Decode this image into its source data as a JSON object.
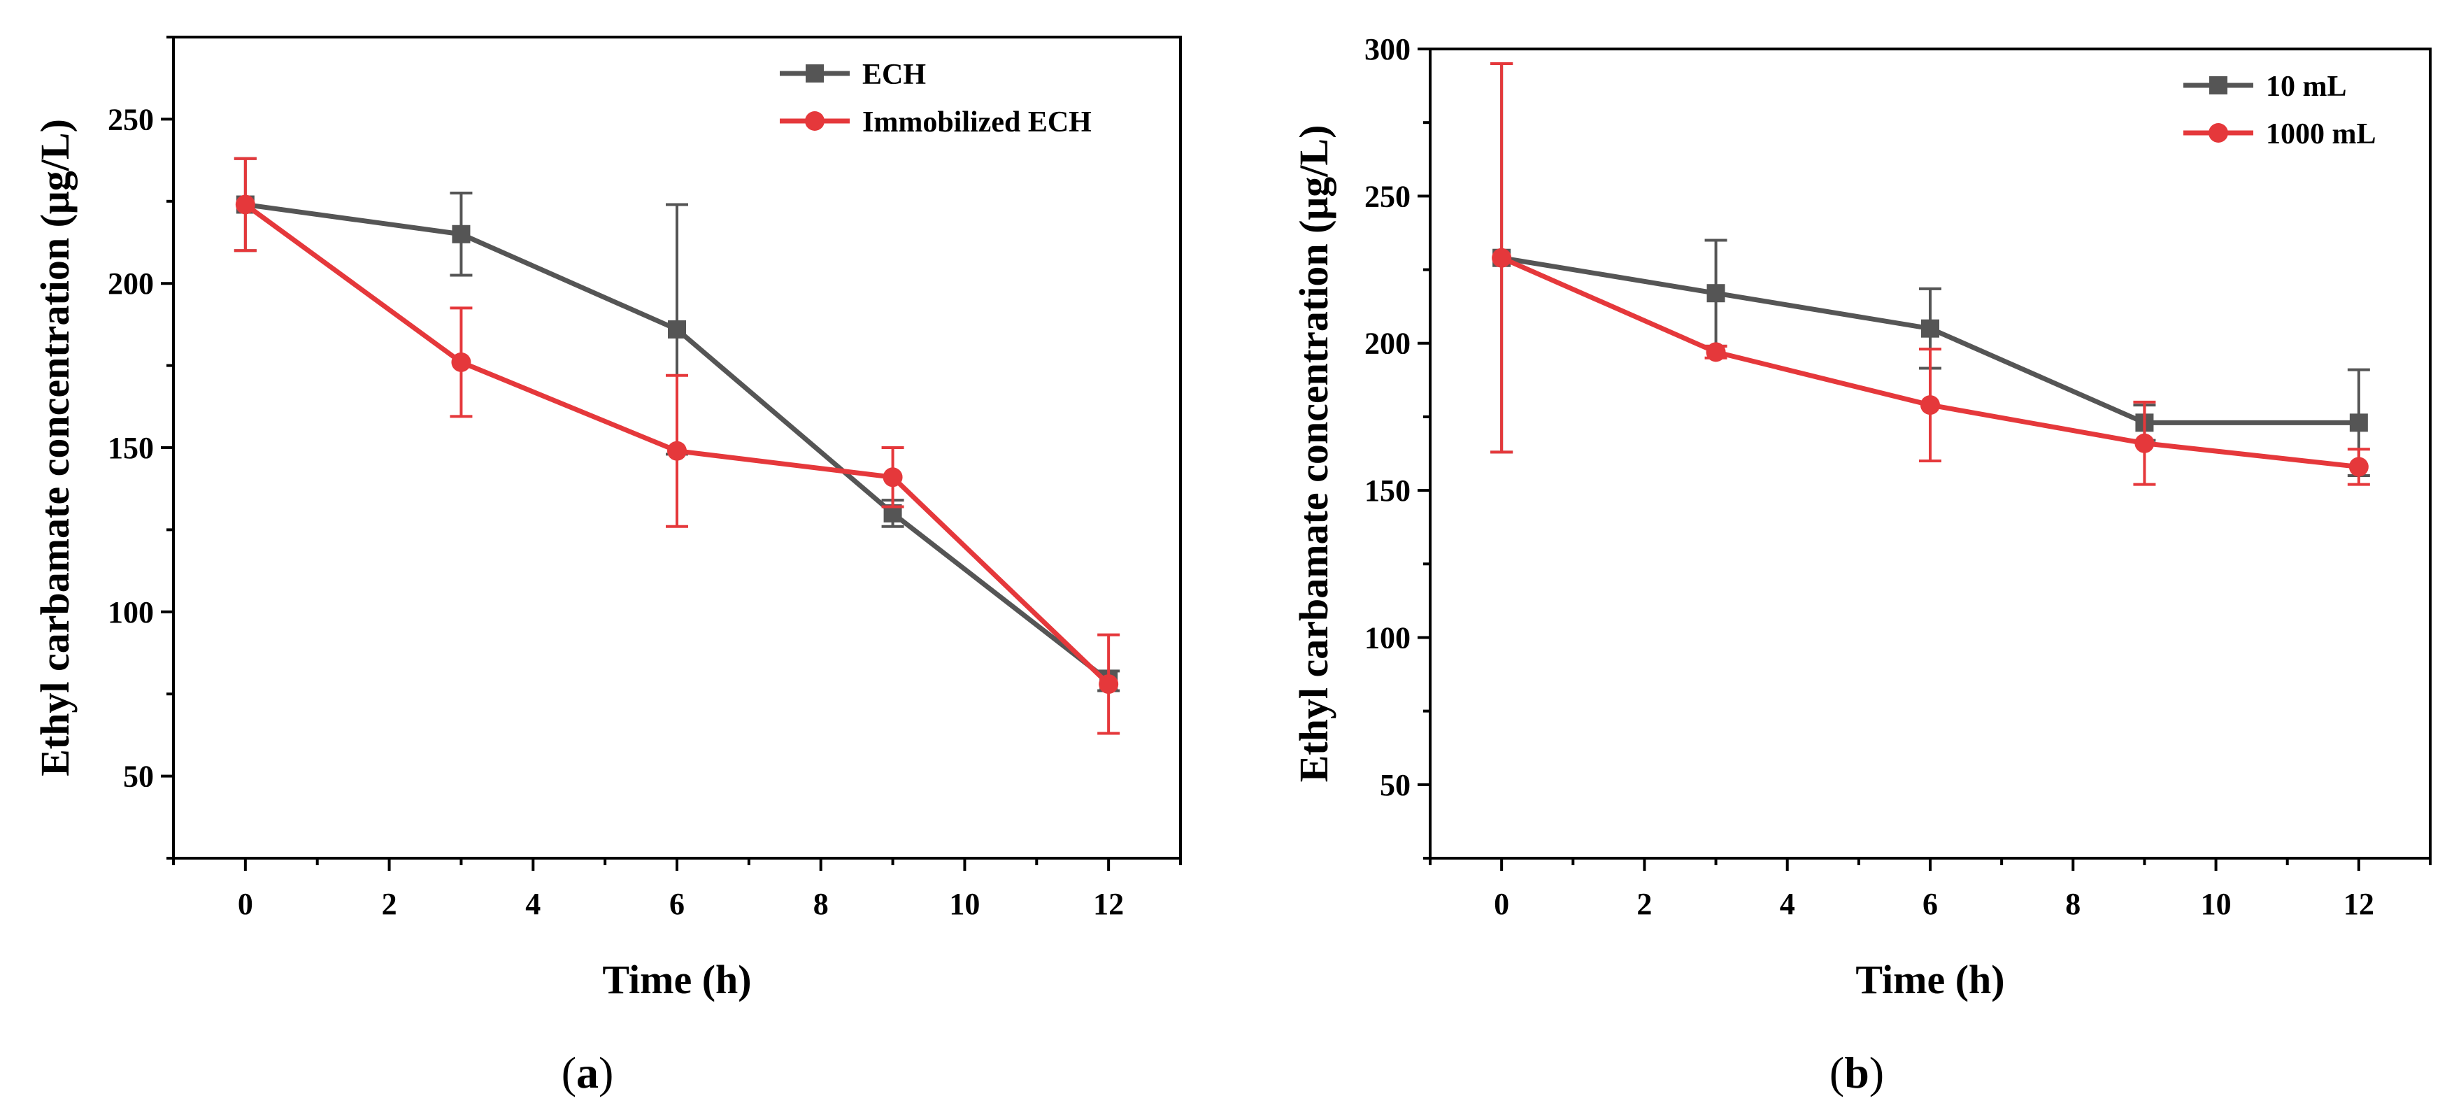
{
  "chart_data": [
    {
      "type": "line",
      "panel_label": "(a)",
      "panel_letter": "a",
      "xlabel": "Time (h)",
      "ylabel": "Ethyl carbamate concentration (μg/L)",
      "xlim": [
        -1,
        13
      ],
      "ylim": [
        25,
        275
      ],
      "xticks": [
        0,
        2,
        4,
        6,
        8,
        10,
        12
      ],
      "xtick_labels": [
        "0",
        "2",
        "4",
        "6",
        "8",
        "10",
        "12"
      ],
      "yticks": [
        50,
        100,
        150,
        200,
        250
      ],
      "ytick_labels": [
        "50",
        "100",
        "150",
        "200",
        "250"
      ],
      "legend_position": "top-right",
      "series": [
        {
          "name": "ECH",
          "color": "#555555",
          "marker": "square",
          "x": [
            0,
            3,
            6,
            9,
            12
          ],
          "values": [
            224,
            215,
            186,
            130,
            79
          ],
          "errors": [
            14,
            12.5,
            38,
            4,
            3
          ]
        },
        {
          "name": "Immobilized ECH",
          "color": "#e5383b",
          "marker": "circle",
          "x": [
            0,
            3,
            6,
            9,
            12
          ],
          "values": [
            224,
            176,
            149,
            141,
            78
          ],
          "errors": [
            14,
            16.5,
            23,
            9,
            15
          ]
        }
      ]
    },
    {
      "type": "line",
      "panel_label": "(b)",
      "panel_letter": "b",
      "xlabel": "Time (h)",
      "ylabel": "Ethyl carbamate concentration (μg/L)",
      "xlim": [
        -1,
        13
      ],
      "ylim": [
        25,
        300
      ],
      "xticks": [
        0,
        2,
        4,
        6,
        8,
        10,
        12
      ],
      "xtick_labels": [
        "0",
        "2",
        "4",
        "6",
        "8",
        "10",
        "12"
      ],
      "yticks": [
        50,
        100,
        150,
        200,
        250,
        300
      ],
      "ytick_labels": [
        "50",
        "100",
        "150",
        "200",
        "250",
        "300"
      ],
      "legend_position": "top-right",
      "series": [
        {
          "name": "10 mL",
          "color": "#555555",
          "marker": "square",
          "x": [
            0,
            3,
            6,
            9,
            12
          ],
          "values": [
            229,
            217,
            205,
            173,
            173
          ],
          "errors": [
            66,
            18,
            13.5,
            6,
            18
          ]
        },
        {
          "name": "1000 mL",
          "color": "#e5383b",
          "marker": "circle",
          "x": [
            0,
            3,
            6,
            9,
            12
          ],
          "values": [
            229,
            197,
            179,
            166,
            158
          ],
          "errors": [
            66,
            2,
            19,
            14,
            6
          ]
        }
      ]
    }
  ]
}
